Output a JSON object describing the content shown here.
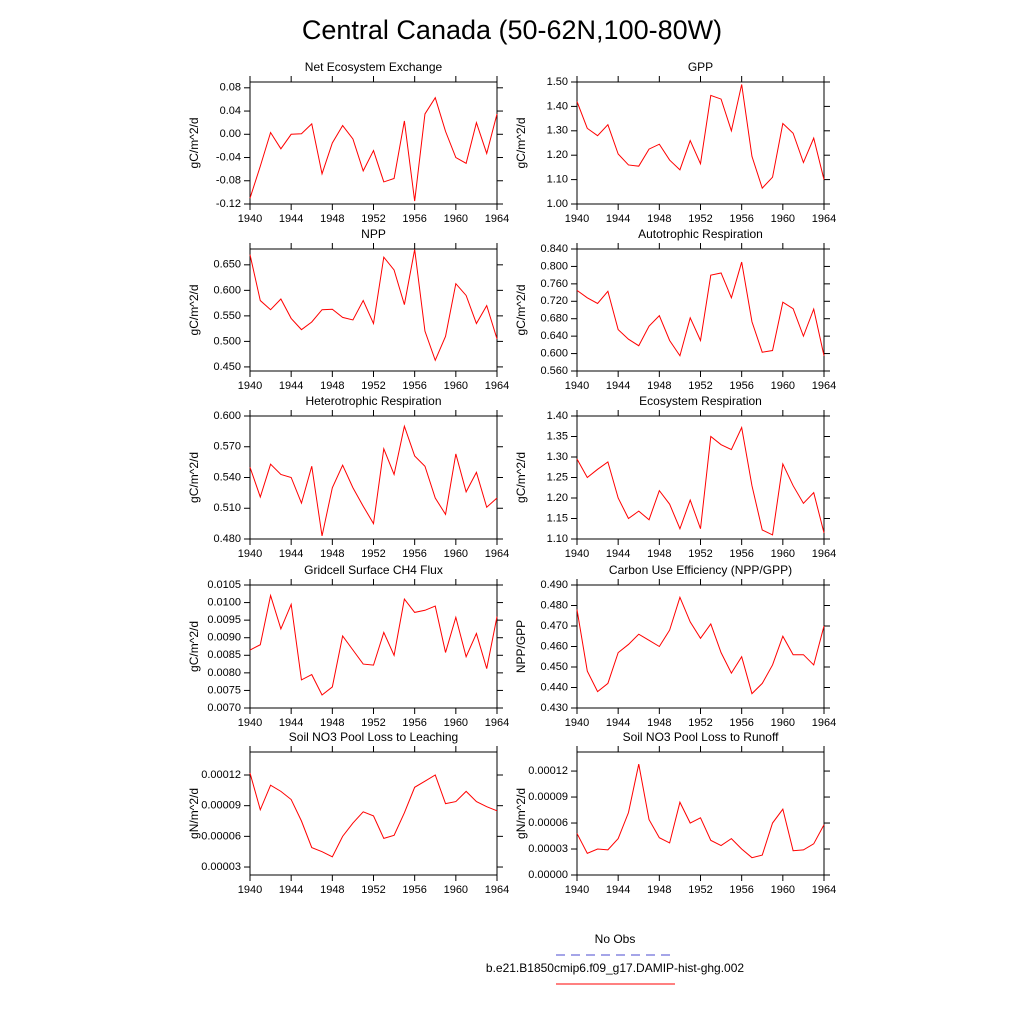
{
  "title": "Central Canada (50-62N,100-80W)",
  "legend": [
    {
      "name": "No Obs",
      "color": "#4b4bd0",
      "dash": "dashed"
    },
    {
      "name": "b.e21.B1850cmip6.f09_g17.DAMIP-hist-ghg.002",
      "color": "#ff0000"
    }
  ],
  "chart_data": [
    {
      "type": "line",
      "title": "Net Ecosystem Exchange",
      "y_label": "gC/m^2/d",
      "color": "#ff0000",
      "x": [
        1940,
        1941,
        1942,
        1943,
        1944,
        1945,
        1946,
        1947,
        1948,
        1949,
        1950,
        1951,
        1952,
        1953,
        1954,
        1955,
        1956,
        1957,
        1958,
        1959,
        1960,
        1961,
        1962,
        1963,
        1964
      ],
      "values": [
        -0.11,
        -0.055,
        0.003,
        -0.025,
        0.0,
        0.001,
        0.018,
        -0.068,
        -0.015,
        0.015,
        -0.008,
        -0.063,
        -0.028,
        -0.082,
        -0.076,
        0.023,
        -0.115,
        0.035,
        0.063,
        0.005,
        -0.04,
        -0.05,
        0.02,
        -0.033,
        0.035
      ],
      "xlim": [
        1940,
        1964
      ],
      "xticks": [
        1940,
        1944,
        1948,
        1952,
        1956,
        1960,
        1964
      ],
      "ylim": [
        -0.12,
        0.09
      ],
      "yticks": [
        -0.12,
        -0.08,
        -0.04,
        {
          "value": 0,
          "label": "0.00"
        },
        0.04,
        0.08
      ]
    },
    {
      "type": "line",
      "title": "GPP",
      "y_label": "gC/m^2/d",
      "color": "#ff0000",
      "x": [
        1940,
        1941,
        1942,
        1943,
        1944,
        1945,
        1946,
        1947,
        1948,
        1949,
        1950,
        1951,
        1952,
        1953,
        1954,
        1955,
        1956,
        1957,
        1958,
        1959,
        1960,
        1961,
        1962,
        1963,
        1964
      ],
      "values": [
        1.42,
        1.31,
        1.28,
        1.325,
        1.205,
        1.16,
        1.155,
        1.225,
        1.245,
        1.18,
        1.14,
        1.26,
        1.165,
        1.445,
        1.43,
        1.3,
        1.49,
        1.195,
        1.065,
        1.11,
        1.33,
        1.29,
        1.17,
        1.27,
        1.1
      ],
      "xlim": [
        1940,
        1964
      ],
      "xticks": [
        1940,
        1944,
        1948,
        1952,
        1956,
        1960,
        1964
      ],
      "ylim": [
        1.0,
        1.5
      ],
      "yticks": [
        {
          "value": 1.0,
          "label": "1.00"
        },
        {
          "value": 1.1,
          "label": "1.10"
        },
        {
          "value": 1.2,
          "label": "1.20"
        },
        {
          "value": 1.3,
          "label": "1.30"
        },
        {
          "value": 1.4,
          "label": "1.40"
        },
        {
          "value": 1.5,
          "label": "1.50"
        }
      ]
    },
    {
      "type": "line",
      "title": "NPP",
      "y_label": "gC/m^2/d",
      "color": "#ff0000",
      "x": [
        1940,
        1941,
        1942,
        1943,
        1944,
        1945,
        1946,
        1947,
        1948,
        1949,
        1950,
        1951,
        1952,
        1953,
        1954,
        1955,
        1956,
        1957,
        1958,
        1959,
        1960,
        1961,
        1962,
        1963,
        1964
      ],
      "values": [
        0.67,
        0.58,
        0.562,
        0.583,
        0.545,
        0.523,
        0.538,
        0.562,
        0.563,
        0.547,
        0.542,
        0.58,
        0.535,
        0.665,
        0.64,
        0.572,
        0.68,
        0.52,
        0.463,
        0.51,
        0.613,
        0.59,
        0.535,
        0.57,
        0.505
      ],
      "xlim": [
        1940,
        1964
      ],
      "xticks": [
        1940,
        1944,
        1948,
        1952,
        1956,
        1960,
        1964
      ],
      "ylim": [
        0.442,
        0.681
      ],
      "yticks": [
        {
          "value": 0.45,
          "label": "0.450"
        },
        {
          "value": 0.5,
          "label": "0.500"
        },
        {
          "value": 0.55,
          "label": "0.550"
        },
        {
          "value": 0.6,
          "label": "0.600"
        },
        {
          "value": 0.65,
          "label": "0.650"
        }
      ]
    },
    {
      "type": "line",
      "title": "Autotrophic Respiration",
      "y_label": "gC/m^2/d",
      "color": "#ff0000",
      "x": [
        1940,
        1941,
        1942,
        1943,
        1944,
        1945,
        1946,
        1947,
        1948,
        1949,
        1950,
        1951,
        1952,
        1953,
        1954,
        1955,
        1956,
        1957,
        1958,
        1959,
        1960,
        1961,
        1962,
        1963,
        1964
      ],
      "values": [
        0.745,
        0.728,
        0.715,
        0.743,
        0.655,
        0.633,
        0.618,
        0.663,
        0.687,
        0.63,
        0.595,
        0.682,
        0.63,
        0.78,
        0.785,
        0.728,
        0.81,
        0.673,
        0.603,
        0.607,
        0.718,
        0.703,
        0.64,
        0.702,
        0.595
      ],
      "xlim": [
        1940,
        1964
      ],
      "xticks": [
        1940,
        1944,
        1948,
        1952,
        1956,
        1960,
        1964
      ],
      "ylim": [
        0.56,
        0.84
      ],
      "yticks": [
        {
          "value": 0.56,
          "label": "0.560"
        },
        {
          "value": 0.6,
          "label": "0.600"
        },
        {
          "value": 0.64,
          "label": "0.640"
        },
        {
          "value": 0.68,
          "label": "0.680"
        },
        {
          "value": 0.72,
          "label": "0.720"
        },
        {
          "value": 0.76,
          "label": "0.760"
        },
        {
          "value": 0.8,
          "label": "0.800"
        },
        {
          "value": 0.84,
          "label": "0.840"
        }
      ]
    },
    {
      "type": "line",
      "title": "Heterotrophic Respiration",
      "y_label": "gC/m^2/d",
      "color": "#ff0000",
      "x": [
        1940,
        1941,
        1942,
        1943,
        1944,
        1945,
        1946,
        1947,
        1948,
        1949,
        1950,
        1951,
        1952,
        1953,
        1954,
        1955,
        1956,
        1957,
        1958,
        1959,
        1960,
        1961,
        1962,
        1963,
        1964
      ],
      "values": [
        0.55,
        0.521,
        0.553,
        0.543,
        0.54,
        0.515,
        0.551,
        0.483,
        0.53,
        0.552,
        0.53,
        0.512,
        0.495,
        0.568,
        0.543,
        0.59,
        0.561,
        0.551,
        0.52,
        0.504,
        0.563,
        0.526,
        0.545,
        0.511,
        0.52
      ],
      "xlim": [
        1940,
        1964
      ],
      "xticks": [
        1940,
        1944,
        1948,
        1952,
        1956,
        1960,
        1964
      ],
      "ylim": [
        0.48,
        0.6
      ],
      "yticks": [
        {
          "value": 0.48,
          "label": "0.480"
        },
        {
          "value": 0.51,
          "label": "0.510"
        },
        {
          "value": 0.54,
          "label": "0.540"
        },
        {
          "value": 0.57,
          "label": "0.570"
        },
        {
          "value": 0.6,
          "label": "0.600"
        }
      ]
    },
    {
      "type": "line",
      "title": "Ecosystem Respiration",
      "y_label": "gC/m^2/d",
      "color": "#ff0000",
      "x": [
        1940,
        1941,
        1942,
        1943,
        1944,
        1945,
        1946,
        1947,
        1948,
        1949,
        1950,
        1951,
        1952,
        1953,
        1954,
        1955,
        1956,
        1957,
        1958,
        1959,
        1960,
        1961,
        1962,
        1963,
        1964
      ],
      "values": [
        1.295,
        1.25,
        1.27,
        1.288,
        1.2,
        1.15,
        1.168,
        1.147,
        1.218,
        1.185,
        1.125,
        1.195,
        1.125,
        1.35,
        1.33,
        1.318,
        1.372,
        1.23,
        1.122,
        1.11,
        1.283,
        1.23,
        1.187,
        1.213,
        1.115
      ],
      "xlim": [
        1940,
        1964
      ],
      "xticks": [
        1940,
        1944,
        1948,
        1952,
        1956,
        1960,
        1964
      ],
      "ylim": [
        1.1,
        1.4
      ],
      "yticks": [
        {
          "value": 1.1,
          "label": "1.10"
        },
        1.15,
        {
          "value": 1.2,
          "label": "1.20"
        },
        1.25,
        {
          "value": 1.3,
          "label": "1.30"
        },
        1.35,
        {
          "value": 1.4,
          "label": "1.40"
        }
      ]
    },
    {
      "type": "line",
      "title": "Gridcell Surface CH4 Flux",
      "y_label": "gC/m^2/d",
      "color": "#ff0000",
      "x": [
        1940,
        1941,
        1942,
        1943,
        1944,
        1945,
        1946,
        1947,
        1948,
        1949,
        1950,
        1951,
        1952,
        1953,
        1954,
        1955,
        1956,
        1957,
        1958,
        1959,
        1960,
        1961,
        1962,
        1963,
        1964
      ],
      "values": [
        0.00865,
        0.0088,
        0.0102,
        0.00925,
        0.00995,
        0.0078,
        0.00795,
        0.00737,
        0.0076,
        0.00905,
        0.00865,
        0.00825,
        0.00822,
        0.00915,
        0.0085,
        0.0101,
        0.00972,
        0.00978,
        0.0099,
        0.00858,
        0.00958,
        0.00846,
        0.00912,
        0.00812,
        0.0096
      ],
      "xlim": [
        1940,
        1964
      ],
      "xticks": [
        1940,
        1944,
        1948,
        1952,
        1956,
        1960,
        1964
      ],
      "ylim": [
        0.007,
        0.0105
      ],
      "yticks": [
        {
          "value": 0.007,
          "label": "0.0070"
        },
        0.0075,
        {
          "value": 0.008,
          "label": "0.0080"
        },
        0.0085,
        {
          "value": 0.009,
          "label": "0.0090"
        },
        0.0095,
        {
          "value": 0.01,
          "label": "0.0100"
        },
        0.0105
      ]
    },
    {
      "type": "line",
      "title": "Carbon Use Efficiency (NPP/GPP)",
      "y_label": "NPP/GPP",
      "color": "#ff0000",
      "x": [
        1940,
        1941,
        1942,
        1943,
        1944,
        1945,
        1946,
        1947,
        1948,
        1949,
        1950,
        1951,
        1952,
        1953,
        1954,
        1955,
        1956,
        1957,
        1958,
        1959,
        1960,
        1961,
        1962,
        1963,
        1964
      ],
      "values": [
        0.478,
        0.448,
        0.438,
        0.442,
        0.457,
        0.461,
        0.466,
        0.463,
        0.46,
        0.468,
        0.484,
        0.472,
        0.464,
        0.471,
        0.457,
        0.447,
        0.455,
        0.437,
        0.442,
        0.451,
        0.465,
        0.456,
        0.456,
        0.451,
        0.47
      ],
      "xlim": [
        1940,
        1964
      ],
      "xticks": [
        1940,
        1944,
        1948,
        1952,
        1956,
        1960,
        1964
      ],
      "ylim": [
        0.43,
        0.49
      ],
      "yticks": [
        {
          "value": 0.43,
          "label": "0.430"
        },
        {
          "value": 0.44,
          "label": "0.440"
        },
        {
          "value": 0.45,
          "label": "0.450"
        },
        {
          "value": 0.46,
          "label": "0.460"
        },
        {
          "value": 0.47,
          "label": "0.470"
        },
        {
          "value": 0.48,
          "label": "0.480"
        },
        {
          "value": 0.49,
          "label": "0.490"
        }
      ]
    },
    {
      "type": "line",
      "title": "Soil NO3 Pool Loss to Leaching",
      "y_label": "gN/m^2/d",
      "color": "#ff0000",
      "x": [
        1940,
        1941,
        1942,
        1943,
        1944,
        1945,
        1946,
        1947,
        1948,
        1949,
        1950,
        1951,
        1952,
        1953,
        1954,
        1955,
        1956,
        1957,
        1958,
        1959,
        1960,
        1961,
        1962,
        1963,
        1964
      ],
      "values": [
        0.000122,
        8.6e-05,
        0.00011,
        0.000104,
        9.6e-05,
        7.5e-05,
        4.9e-05,
        4.5e-05,
        4e-05,
        6e-05,
        7.3e-05,
        8.4e-05,
        8e-05,
        5.8e-05,
        6.1e-05,
        8.3e-05,
        0.000108,
        0.000114,
        0.00012,
        9.2e-05,
        9.4e-05,
        0.000104,
        9.4e-05,
        8.9e-05,
        8.5e-05
      ],
      "xlim": [
        1940,
        1964
      ],
      "xticks": [
        1940,
        1944,
        1948,
        1952,
        1956,
        1960,
        1964
      ],
      "ylim": [
        2.22e-05,
        0.0001425
      ],
      "yticks": [
        3e-05,
        6e-05,
        9e-05,
        0.00012
      ]
    },
    {
      "type": "line",
      "title": "Soil NO3 Pool Loss to Runoff",
      "y_label": "gN/m^2/d",
      "color": "#ff0000",
      "x": [
        1940,
        1941,
        1942,
        1943,
        1944,
        1945,
        1946,
        1947,
        1948,
        1949,
        1950,
        1951,
        1952,
        1953,
        1954,
        1955,
        1956,
        1957,
        1958,
        1959,
        1960,
        1961,
        1962,
        1963,
        1964
      ],
      "values": [
        4.8e-05,
        2.5e-05,
        3e-05,
        2.9e-05,
        4.2e-05,
        7.2e-05,
        0.000128,
        6.4e-05,
        4.3e-05,
        3.7e-05,
        8.4e-05,
        6e-05,
        6.6e-05,
        4e-05,
        3.4e-05,
        4.2e-05,
        3e-05,
        2e-05,
        2.3e-05,
        6e-05,
        7.6e-05,
        2.8e-05,
        2.9e-05,
        3.6e-05,
        5.8e-05
      ],
      "xlim": [
        1940,
        1964
      ],
      "xticks": [
        1940,
        1944,
        1948,
        1952,
        1956,
        1960,
        1964
      ],
      "ylim": [
        0,
        0.000142
      ],
      "yticks": [
        {
          "value": 0,
          "label": "0.00000"
        },
        3e-05,
        6e-05,
        9e-05,
        0.00012
      ]
    }
  ]
}
